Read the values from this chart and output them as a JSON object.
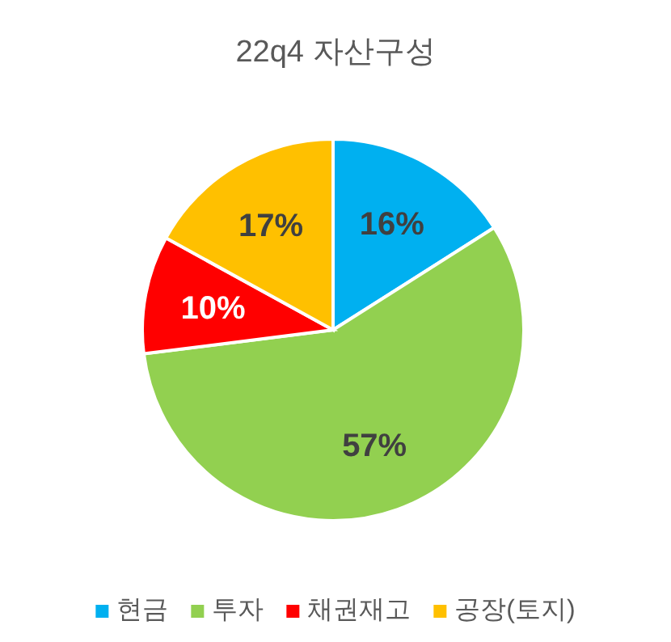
{
  "chart_data": {
    "type": "pie",
    "title": "22q4 자산구성",
    "categories": [
      "현금",
      "투자",
      "채권재고",
      "공장(토지)"
    ],
    "values": [
      16,
      57,
      10,
      17
    ],
    "colors": [
      "#00b0f0",
      "#92d050",
      "#ff0000",
      "#ffc000"
    ],
    "value_labels": [
      "16%",
      "57%",
      "10%",
      "17%"
    ],
    "legend": "bottom"
  }
}
